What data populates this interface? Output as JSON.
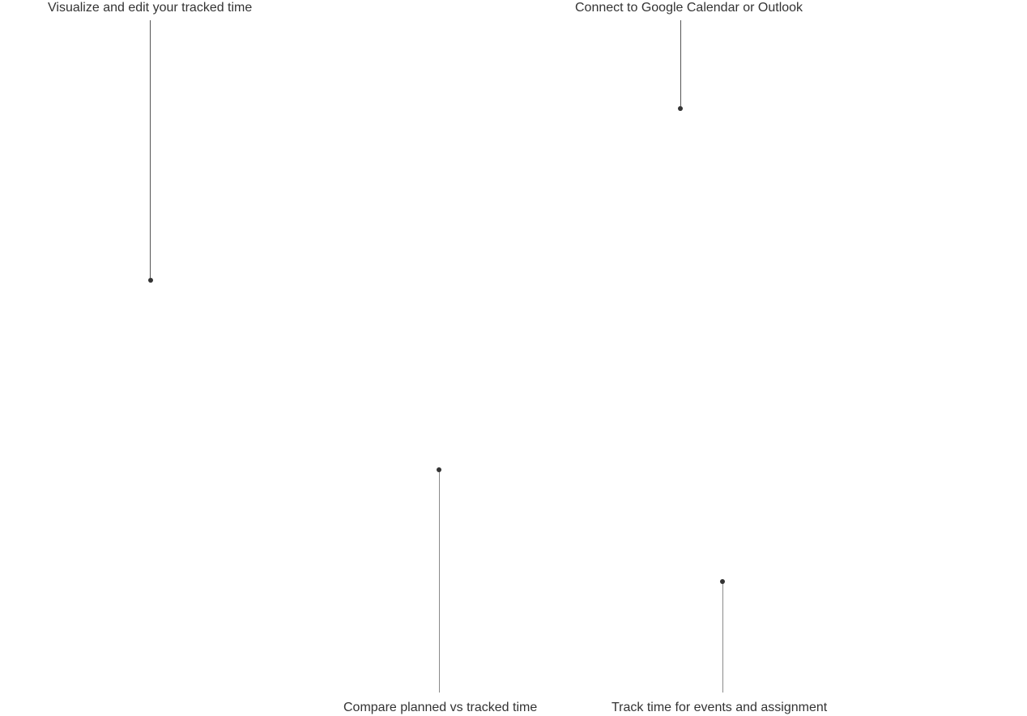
{
  "callouts": [
    {
      "label": "Visualize and edit your tracked time"
    },
    {
      "label": "Connect to Google Calendar or Outlook"
    },
    {
      "label": "Compare planned vs tracked time"
    },
    {
      "label": "Track time for events and assignment"
    }
  ],
  "colors": {
    "text": "#333333",
    "line_dark": "#555555",
    "line_light": "#8a8a8a",
    "background": "#ffffff"
  }
}
